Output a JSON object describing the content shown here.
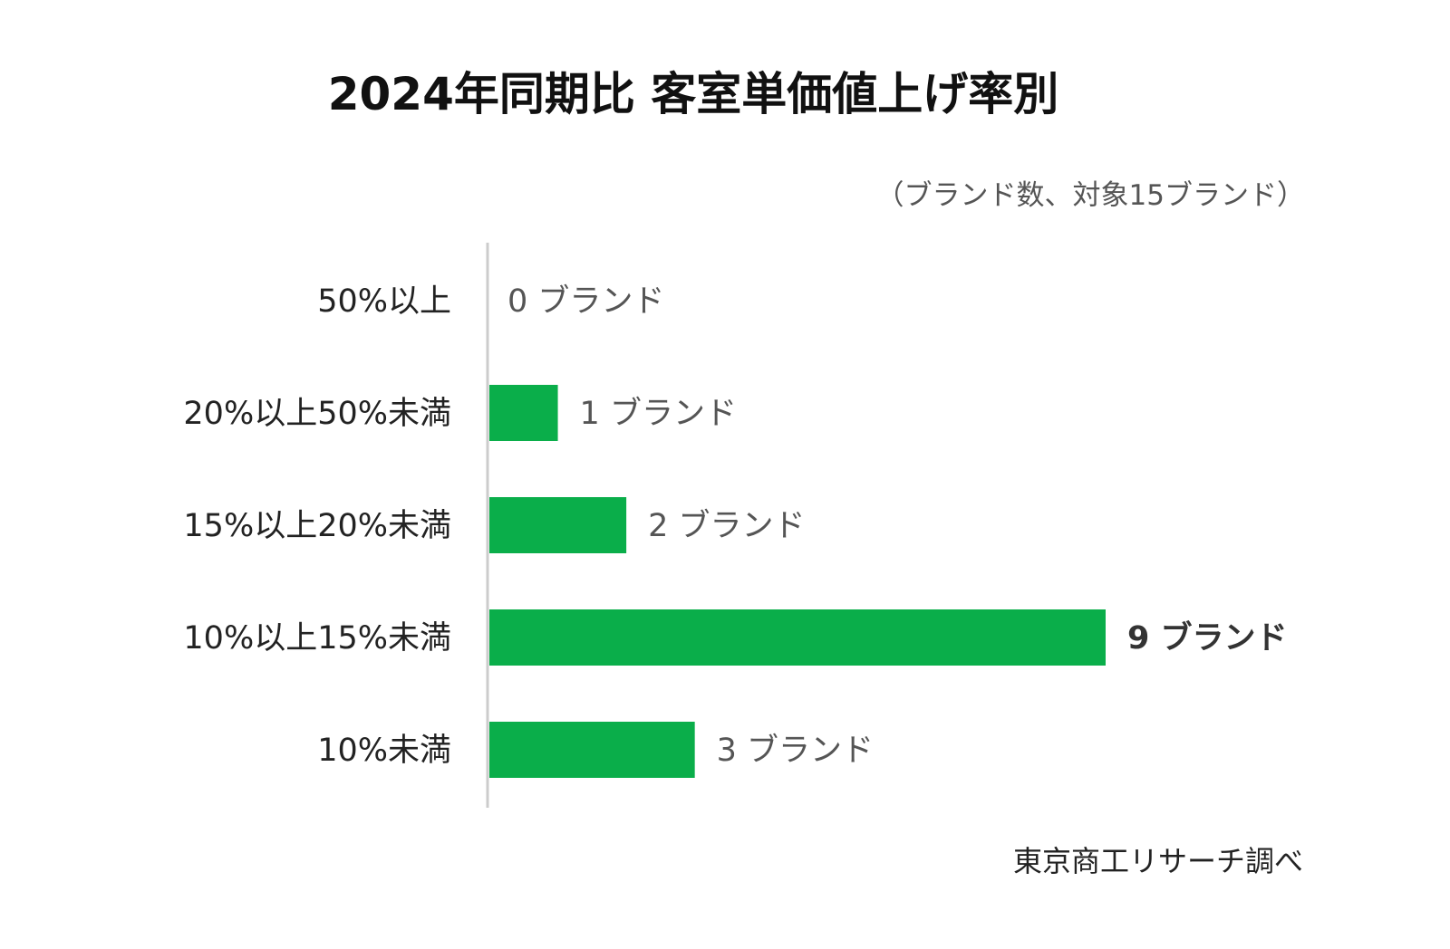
{
  "chart_data": {
    "type": "bar",
    "orientation": "horizontal",
    "title": "2024年同期比  客室単価値上げ率別",
    "unit_note": "（ブランド数、対象15ブランド）",
    "source": "東京商工リサーチ調べ",
    "categories": [
      "50%以上",
      "20%以上50%未満",
      "15%以上20%未満",
      "10%以上15%未満",
      "10%未満"
    ],
    "values": [
      0,
      1,
      2,
      9,
      3
    ],
    "value_labels": [
      "0 ブランド",
      "1 ブランド",
      "2 ブランド",
      "9 ブランド",
      "3 ブランド"
    ],
    "emphasized_index": 3,
    "xlim": [
      0,
      9
    ],
    "grid": false,
    "bar_color": "#0aae4a",
    "axis_color": "#cccccc"
  }
}
